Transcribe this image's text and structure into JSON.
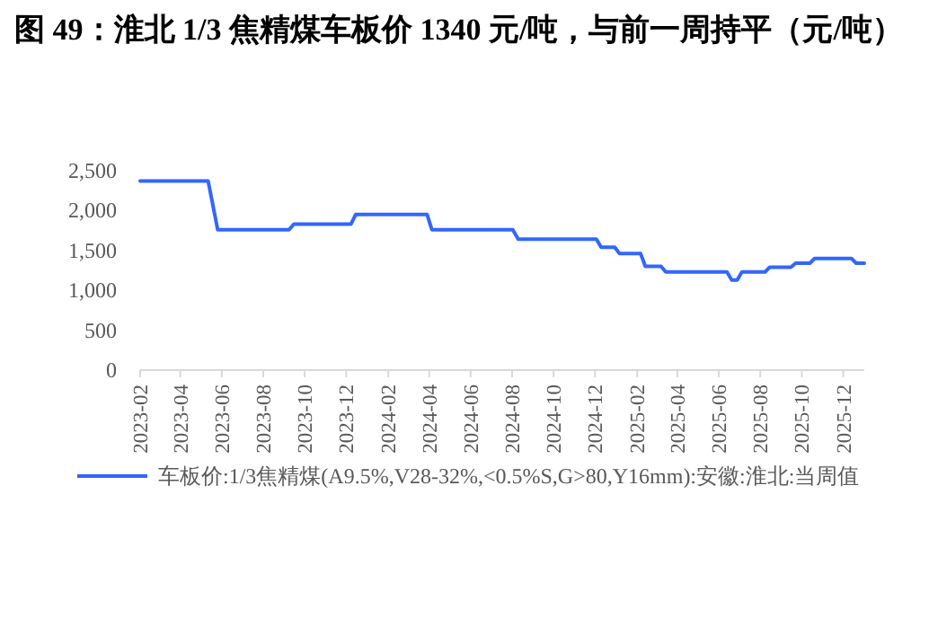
{
  "chart_data": {
    "type": "line",
    "title": "图 49：淮北 1/3 焦精煤车板价 1340 元/吨，与前一周持平（元/吨）",
    "x": [
      "2023-02-01",
      "2023-05-12",
      "2023-05-26",
      "2023-09-08",
      "2023-09-15",
      "2023-12-08",
      "2023-12-15",
      "2024-03-29",
      "2024-04-05",
      "2024-08-02",
      "2024-08-10",
      "2024-12-03",
      "2024-12-10",
      "2024-12-30",
      "2025-01-06",
      "2025-02-06",
      "2025-02-13",
      "2025-03-08",
      "2025-03-15",
      "2025-06-13",
      "2025-06-20",
      "2025-06-28",
      "2025-07-05",
      "2025-08-08",
      "2025-08-15",
      "2025-09-15",
      "2025-09-22",
      "2025-10-13",
      "2025-10-20",
      "2025-12-13",
      "2025-12-20",
      "2026-01-01"
    ],
    "series": [
      {
        "name": "车板价:1/3焦精煤(A9.5%,V28-32%,<0.5%S,G>80,Y16mm):安徽:淮北:当周值",
        "color": "#3366ff",
        "line_style": "solid",
        "values": [
          2370,
          2370,
          1760,
          1760,
          1830,
          1830,
          1950,
          1950,
          1760,
          1760,
          1640,
          1640,
          1540,
          1540,
          1460,
          1460,
          1300,
          1300,
          1230,
          1230,
          1130,
          1130,
          1230,
          1230,
          1290,
          1290,
          1340,
          1340,
          1400,
          1400,
          1340,
          1340
        ]
      }
    ],
    "xlim": [
      "2023-02-01",
      "2026-01-01"
    ],
    "xticks": [
      "2023-02",
      "2023-04",
      "2023-06",
      "2023-08",
      "2023-10",
      "2023-12",
      "2024-02",
      "2024-04",
      "2024-06",
      "2024-08",
      "2024-10",
      "2024-12",
      "2025-02",
      "2025-04",
      "2025-06",
      "2025-08",
      "2025-10",
      "2025-12"
    ],
    "ylim": [
      0,
      2500
    ],
    "yticks": [
      {
        "value": 0,
        "label": "0"
      },
      {
        "value": 500,
        "label": "500"
      },
      {
        "value": 1000,
        "label": "1,000"
      },
      {
        "value": 1500,
        "label": "1,500"
      },
      {
        "value": 2000,
        "label": "2,000"
      },
      {
        "value": 2500,
        "label": "2,500"
      }
    ],
    "grid": false,
    "legend": "bottom",
    "marker": "none"
  }
}
